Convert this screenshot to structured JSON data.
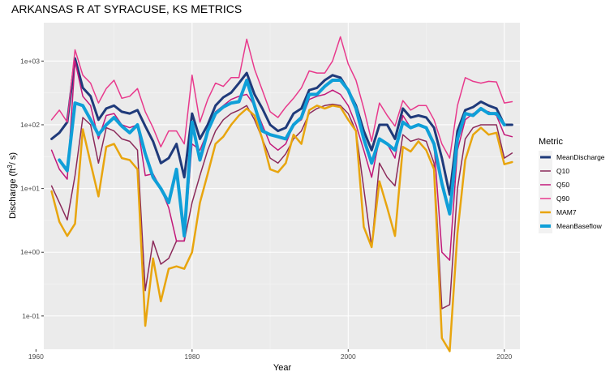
{
  "chart_data": {
    "type": "line",
    "title": "ARKANSAS R AT SYRACUSE, KS  METRICS",
    "xlabel": "Year",
    "ylabel": "Discharge (ft³/s)",
    "ylabel_base": "Discharge (ft",
    "ylabel_sup": "3",
    "ylabel_tail": "/ s)",
    "y_scale": "log10",
    "xlim": [
      1961,
      2022
    ],
    "ylim": [
      0.03,
      4000
    ],
    "x_ticks": [
      1960,
      1980,
      2000,
      2020
    ],
    "x_tick_labels": [
      "1960",
      "1980",
      "2000",
      "2020"
    ],
    "y_ticks": [
      0.1,
      1,
      10,
      100,
      1000
    ],
    "y_tick_labels": [
      "1e-01",
      "1e+00",
      "1e+01",
      "1e+02",
      "1e+03"
    ],
    "grid": true,
    "legend_position": "right",
    "legend_title": "Metric",
    "years": [
      1962,
      1963,
      1964,
      1965,
      1966,
      1967,
      1968,
      1969,
      1970,
      1971,
      1972,
      1973,
      1974,
      1975,
      1976,
      1977,
      1978,
      1979,
      1980,
      1981,
      1982,
      1983,
      1984,
      1985,
      1986,
      1987,
      1988,
      1989,
      1990,
      1991,
      1992,
      1993,
      1994,
      1995,
      1996,
      1997,
      1998,
      1999,
      2000,
      2001,
      2002,
      2003,
      2004,
      2005,
      2006,
      2007,
      2008,
      2009,
      2010,
      2011,
      2012,
      2013,
      2014,
      2015,
      2016,
      2017,
      2018,
      2019,
      2020,
      2021
    ],
    "series": [
      {
        "name": "MeanDischarge",
        "color": "#1f3a7a",
        "width": 3,
        "values": [
          60,
          75,
          110,
          1100,
          380,
          280,
          120,
          180,
          200,
          160,
          150,
          170,
          95,
          55,
          25,
          30,
          50,
          15,
          150,
          60,
          100,
          200,
          270,
          320,
          450,
          650,
          300,
          180,
          100,
          80,
          90,
          150,
          180,
          350,
          380,
          500,
          600,
          550,
          350,
          200,
          80,
          40,
          100,
          100,
          60,
          180,
          130,
          140,
          130,
          90,
          30,
          8,
          80,
          170,
          190,
          230,
          200,
          180,
          100,
          100
        ]
      },
      {
        "name": "Q10",
        "color": "#8b2a5a",
        "width": 1.5,
        "values": [
          11,
          6,
          3.2,
          16,
          130,
          100,
          25,
          90,
          80,
          60,
          55,
          40,
          0.25,
          1.5,
          0.65,
          0.8,
          1.5,
          1.5,
          6,
          16,
          40,
          80,
          120,
          150,
          170,
          200,
          120,
          60,
          30,
          25,
          35,
          60,
          80,
          150,
          180,
          200,
          210,
          200,
          150,
          80,
          10,
          1.2,
          25,
          15,
          11,
          70,
          55,
          60,
          55,
          25,
          0.13,
          0.15,
          10,
          60,
          90,
          100,
          100,
          100,
          30,
          36
        ]
      },
      {
        "name": "Q50",
        "color": "#c2187a",
        "width": 1.5,
        "values": [
          40,
          20,
          14,
          1000,
          280,
          200,
          60,
          140,
          150,
          100,
          90,
          100,
          16,
          17,
          10,
          5,
          1.5,
          1.5,
          50,
          40,
          80,
          160,
          200,
          250,
          280,
          300,
          200,
          100,
          50,
          40,
          50,
          100,
          120,
          250,
          280,
          300,
          350,
          300,
          200,
          100,
          40,
          15,
          60,
          50,
          30,
          140,
          90,
          100,
          90,
          50,
          1.0,
          0.75,
          40,
          120,
          150,
          170,
          160,
          140,
          70,
          65
        ]
      },
      {
        "name": "Q90",
        "color": "#e8398c",
        "width": 1.5,
        "values": [
          120,
          170,
          110,
          1500,
          600,
          450,
          220,
          370,
          500,
          260,
          280,
          370,
          160,
          90,
          45,
          80,
          80,
          50,
          600,
          110,
          250,
          450,
          400,
          550,
          550,
          2200,
          750,
          350,
          160,
          130,
          190,
          260,
          380,
          700,
          650,
          650,
          1000,
          2400,
          900,
          500,
          180,
          55,
          220,
          140,
          95,
          240,
          170,
          200,
          200,
          120,
          50,
          30,
          200,
          550,
          480,
          450,
          480,
          470,
          220,
          230
        ]
      },
      {
        "name": "MAM7",
        "color": "#e8a50e",
        "width": 2.5,
        "values": [
          9,
          3,
          1.8,
          2.8,
          85,
          25,
          7.5,
          45,
          50,
          30,
          28,
          20,
          0.07,
          0.8,
          0.17,
          0.55,
          0.6,
          0.55,
          1.0,
          6,
          17,
          50,
          65,
          100,
          140,
          180,
          140,
          60,
          20,
          18,
          25,
          70,
          50,
          170,
          200,
          180,
          200,
          190,
          120,
          80,
          2.5,
          1.2,
          13,
          5,
          1.8,
          45,
          38,
          55,
          40,
          20,
          0.045,
          0.028,
          2,
          28,
          70,
          90,
          70,
          75,
          24,
          26
        ]
      },
      {
        "name": "MeanBaseflow",
        "color": "#0f9fd8",
        "width": 4,
        "values": [
          null,
          28,
          19,
          220,
          200,
          120,
          70,
          100,
          130,
          95,
          75,
          100,
          35,
          15,
          10,
          6,
          20,
          1.8,
          110,
          28,
          80,
          150,
          190,
          220,
          230,
          500,
          200,
          80,
          70,
          65,
          60,
          100,
          130,
          300,
          300,
          400,
          500,
          500,
          350,
          180,
          60,
          25,
          60,
          50,
          40,
          110,
          90,
          100,
          90,
          50,
          12,
          4,
          60,
          150,
          140,
          180,
          150,
          150,
          100,
          null
        ]
      }
    ]
  }
}
